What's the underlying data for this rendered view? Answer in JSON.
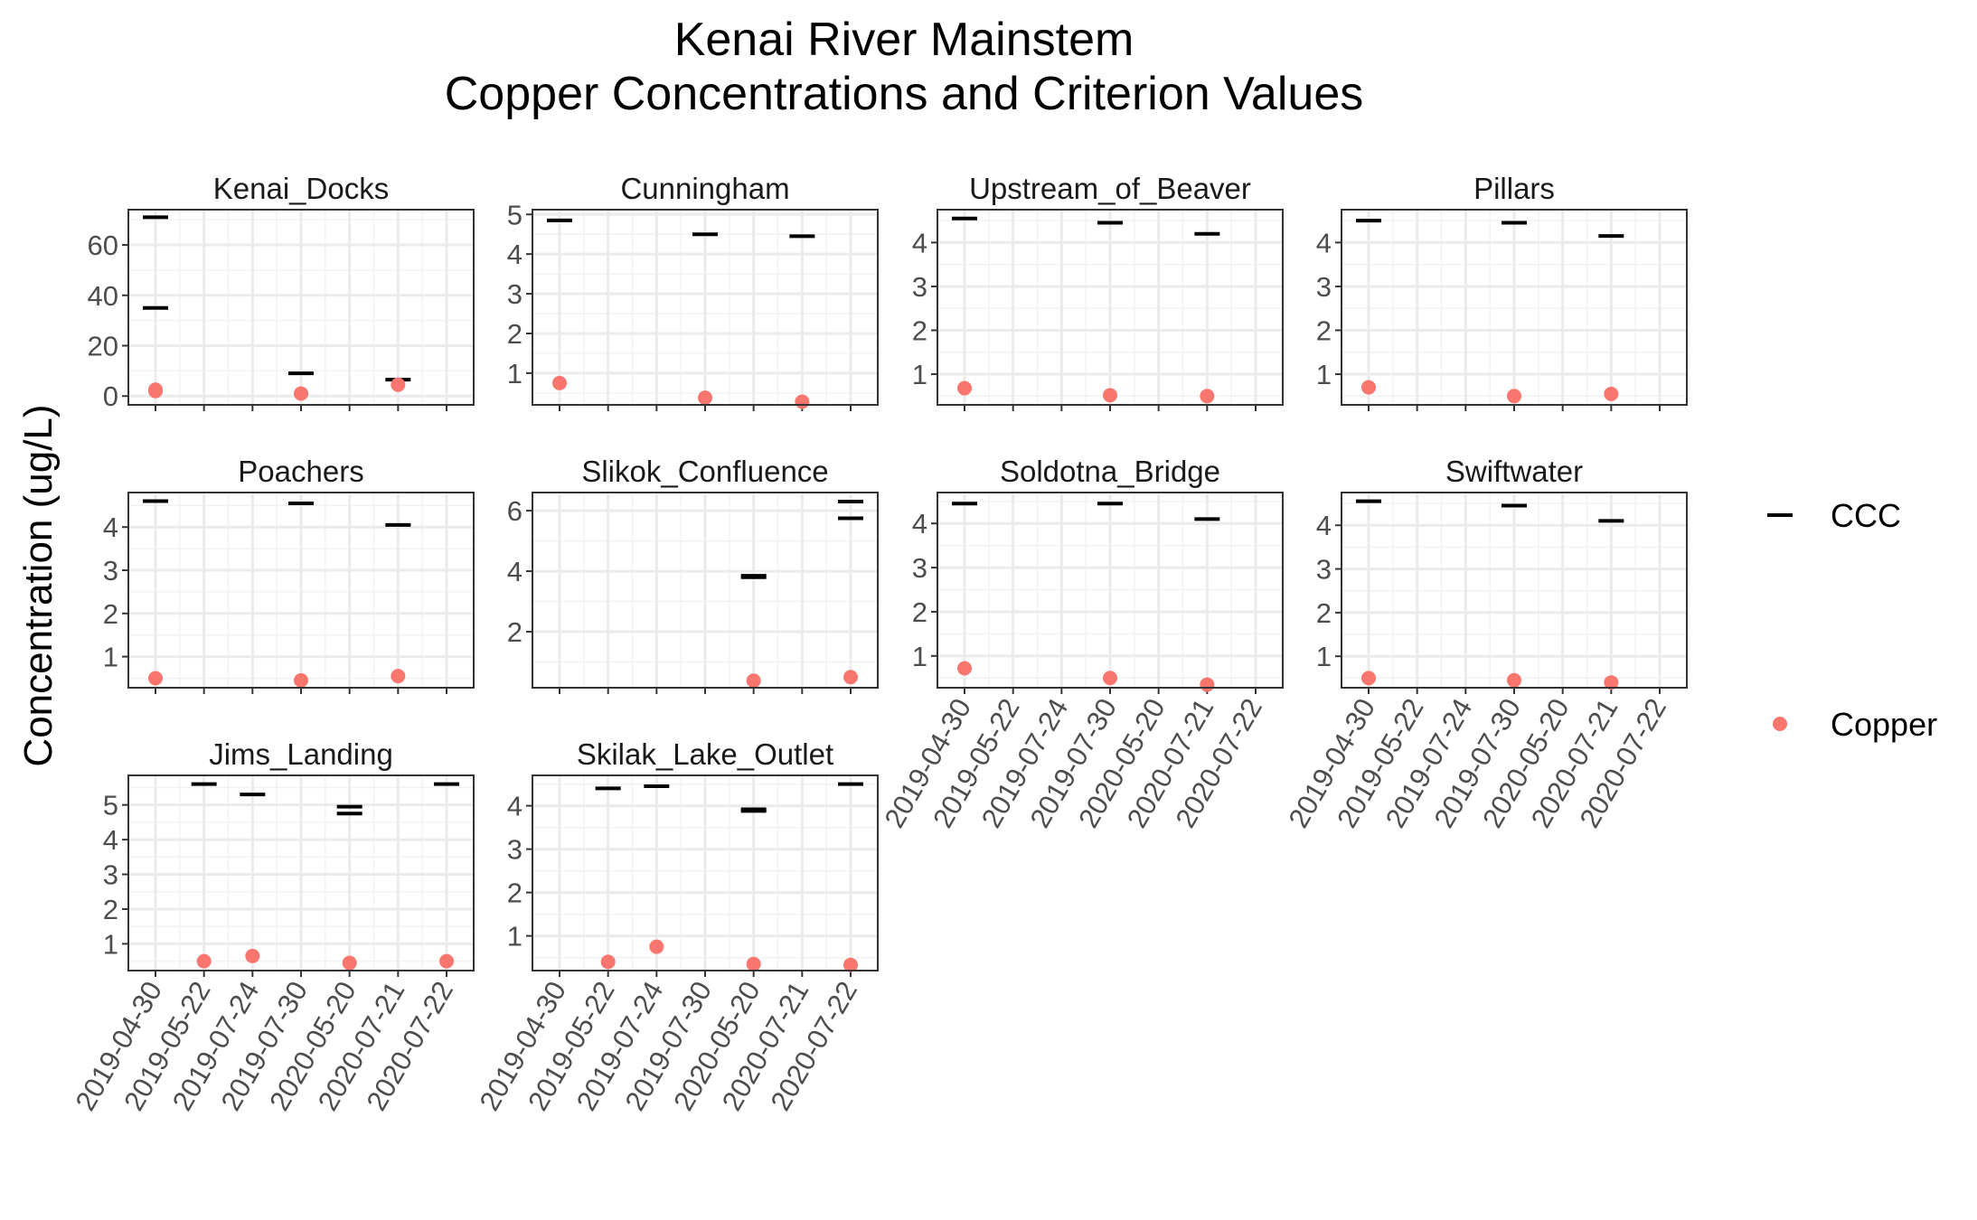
{
  "chart_data": {
    "type": "scatter",
    "title": "Kenai River Mainstem",
    "subtitle": "Copper Concentrations and Criterion Values",
    "xlabel": "",
    "ylabel": "Concentration (ug/L)",
    "x_categories": [
      "2019-04-30",
      "2019-05-22",
      "2019-07-24",
      "2019-07-30",
      "2020-05-20",
      "2020-07-21",
      "2020-07-22"
    ],
    "legend": {
      "position": "right",
      "entries": [
        {
          "label": "CCC",
          "shape": "dash",
          "color": "#000000"
        },
        {
          "label": "Copper",
          "shape": "point",
          "color": "#F8766D"
        }
      ]
    },
    "grid": true,
    "facets": [
      {
        "name": "Kenai_Docks",
        "yticks": [
          0,
          20,
          40,
          60
        ],
        "ylim": [
          -3.5,
          74
        ],
        "ccc": [
          {
            "x": "2019-04-30",
            "y": 71
          },
          {
            "x": "2019-04-30",
            "y": 35
          },
          {
            "x": "2019-07-30",
            "y": 9
          },
          {
            "x": "2020-07-21",
            "y": 6.5
          }
        ],
        "copper": [
          {
            "x": "2019-04-30",
            "y": 2.5
          },
          {
            "x": "2019-04-30",
            "y": 2.0
          },
          {
            "x": "2019-07-30",
            "y": 1.0
          },
          {
            "x": "2020-07-21",
            "y": 4.5
          }
        ]
      },
      {
        "name": "Cunningham",
        "yticks": [
          1,
          2,
          3,
          4,
          5
        ],
        "ylim": [
          0.2,
          5.12
        ],
        "ccc": [
          {
            "x": "2019-04-30",
            "y": 4.85
          },
          {
            "x": "2019-07-30",
            "y": 4.5
          },
          {
            "x": "2020-07-21",
            "y": 4.45
          }
        ],
        "copper": [
          {
            "x": "2019-04-30",
            "y": 0.75
          },
          {
            "x": "2019-07-30",
            "y": 0.38
          },
          {
            "x": "2020-07-21",
            "y": 0.28
          }
        ]
      },
      {
        "name": "Upstream_of_Beaver",
        "yticks": [
          1,
          2,
          3,
          4
        ],
        "ylim": [
          0.3,
          4.75
        ],
        "ccc": [
          {
            "x": "2019-04-30",
            "y": 4.55
          },
          {
            "x": "2019-07-30",
            "y": 4.45
          },
          {
            "x": "2020-07-21",
            "y": 4.2
          }
        ],
        "copper": [
          {
            "x": "2019-04-30",
            "y": 0.68
          },
          {
            "x": "2019-07-30",
            "y": 0.52
          },
          {
            "x": "2020-07-21",
            "y": 0.5
          }
        ]
      },
      {
        "name": "Pillars",
        "yticks": [
          1,
          2,
          3,
          4
        ],
        "ylim": [
          0.3,
          4.75
        ],
        "ccc": [
          {
            "x": "2019-04-30",
            "y": 4.5
          },
          {
            "x": "2019-07-30",
            "y": 4.45
          },
          {
            "x": "2020-07-21",
            "y": 4.15
          }
        ],
        "copper": [
          {
            "x": "2019-04-30",
            "y": 0.7
          },
          {
            "x": "2019-07-30",
            "y": 0.5
          },
          {
            "x": "2020-07-21",
            "y": 0.55
          }
        ]
      },
      {
        "name": "Poachers",
        "yticks": [
          1,
          2,
          3,
          4
        ],
        "ylim": [
          0.28,
          4.8
        ],
        "ccc": [
          {
            "x": "2019-04-30",
            "y": 4.6
          },
          {
            "x": "2019-07-30",
            "y": 4.55
          },
          {
            "x": "2020-07-21",
            "y": 4.05
          }
        ],
        "copper": [
          {
            "x": "2019-04-30",
            "y": 0.5
          },
          {
            "x": "2019-07-30",
            "y": 0.45
          },
          {
            "x": "2020-07-21",
            "y": 0.55
          }
        ]
      },
      {
        "name": "Slikok_Confluence",
        "yticks": [
          2,
          4,
          6
        ],
        "ylim": [
          0.15,
          6.6
        ],
        "ccc": [
          {
            "x": "2020-05-20",
            "y": 3.85
          },
          {
            "x": "2020-05-20",
            "y": 3.8
          },
          {
            "x": "2020-07-22",
            "y": 6.3
          },
          {
            "x": "2020-07-22",
            "y": 5.75
          }
        ],
        "copper": [
          {
            "x": "2020-05-20",
            "y": 0.38
          },
          {
            "x": "2020-07-22",
            "y": 0.5
          }
        ]
      },
      {
        "name": "Soldotna_Bridge",
        "yticks": [
          1,
          2,
          3,
          4
        ],
        "ylim": [
          0.28,
          4.7
        ],
        "ccc": [
          {
            "x": "2019-04-30",
            "y": 4.45
          },
          {
            "x": "2019-07-30",
            "y": 4.45
          },
          {
            "x": "2020-07-21",
            "y": 4.1
          }
        ],
        "copper": [
          {
            "x": "2019-04-30",
            "y": 0.72
          },
          {
            "x": "2019-07-30",
            "y": 0.5
          },
          {
            "x": "2020-07-21",
            "y": 0.35
          }
        ]
      },
      {
        "name": "Swiftwater",
        "yticks": [
          1,
          2,
          3,
          4
        ],
        "ylim": [
          0.28,
          4.75
        ],
        "ccc": [
          {
            "x": "2019-04-30",
            "y": 4.55
          },
          {
            "x": "2019-07-30",
            "y": 4.45
          },
          {
            "x": "2020-07-21",
            "y": 4.1
          }
        ],
        "copper": [
          {
            "x": "2019-04-30",
            "y": 0.5
          },
          {
            "x": "2019-07-30",
            "y": 0.45
          },
          {
            "x": "2020-07-21",
            "y": 0.4
          }
        ]
      },
      {
        "name": "Jims_Landing",
        "yticks": [
          1,
          2,
          3,
          4,
          5
        ],
        "ylim": [
          0.23,
          5.85
        ],
        "ccc": [
          {
            "x": "2019-05-22",
            "y": 5.6
          },
          {
            "x": "2019-07-24",
            "y": 5.3
          },
          {
            "x": "2020-05-20",
            "y": 4.95
          },
          {
            "x": "2020-05-20",
            "y": 4.75
          },
          {
            "x": "2020-07-22",
            "y": 5.6
          }
        ],
        "copper": [
          {
            "x": "2019-05-22",
            "y": 0.5
          },
          {
            "x": "2019-07-24",
            "y": 0.65
          },
          {
            "x": "2020-05-20",
            "y": 0.45
          },
          {
            "x": "2020-07-22",
            "y": 0.5
          }
        ]
      },
      {
        "name": "Skilak_Lake_Outlet",
        "yticks": [
          1,
          2,
          3,
          4
        ],
        "ylim": [
          0.2,
          4.7
        ],
        "ccc": [
          {
            "x": "2019-05-22",
            "y": 4.4
          },
          {
            "x": "2019-07-24",
            "y": 4.45
          },
          {
            "x": "2020-05-20",
            "y": 3.92
          },
          {
            "x": "2020-05-20",
            "y": 3.88
          },
          {
            "x": "2020-07-22",
            "y": 4.5
          }
        ],
        "copper": [
          {
            "x": "2019-05-22",
            "y": 0.4
          },
          {
            "x": "2019-07-24",
            "y": 0.75
          },
          {
            "x": "2020-05-20",
            "y": 0.35
          },
          {
            "x": "2020-07-22",
            "y": 0.33
          }
        ]
      }
    ]
  }
}
